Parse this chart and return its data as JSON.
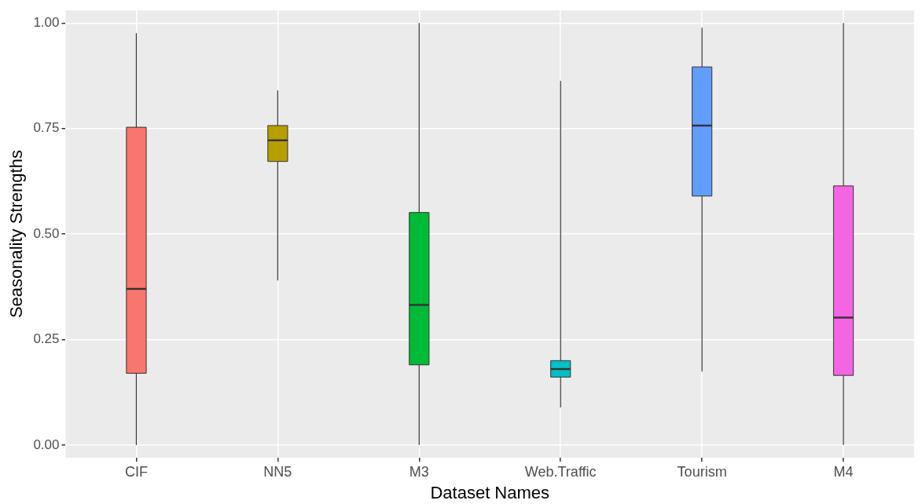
{
  "chart_data": {
    "type": "box",
    "xlabel": "Dataset Names",
    "ylabel": "Seasonality Strengths",
    "categories": [
      "CIF",
      "NN5",
      "M3",
      "Web.Traffic",
      "Tourism",
      "M4"
    ],
    "colors": [
      "#f8766d",
      "#b79f00",
      "#00ba38",
      "#00bfc4",
      "#619cff",
      "#f564e3"
    ],
    "boxes": [
      {
        "low": 0,
        "q1": 0.17,
        "median": 0.37,
        "q3": 0.753,
        "high": 0.976
      },
      {
        "low": 0.39,
        "q1": 0.672,
        "median": 0.722,
        "q3": 0.757,
        "high": 0.84
      },
      {
        "low": 0,
        "q1": 0.19,
        "median": 0.332,
        "q3": 0.551,
        "high": 1.0
      },
      {
        "low": 0.089,
        "q1": 0.161,
        "median": 0.18,
        "q3": 0.2,
        "high": 0.863
      },
      {
        "low": 0.174,
        "q1": 0.59,
        "median": 0.757,
        "q3": 0.896,
        "high": 0.989
      },
      {
        "low": 0,
        "q1": 0.165,
        "median": 0.302,
        "q3": 0.614,
        "high": 1.0
      }
    ],
    "ylim": [
      -0.03,
      1.03
    ],
    "yticks": [
      {
        "value": 0,
        "label": "0.00"
      },
      {
        "value": 0.25,
        "label": "0.25"
      },
      {
        "value": 0.5,
        "label": "0.50"
      },
      {
        "value": 0.75,
        "label": "0.75"
      },
      {
        "value": 1,
        "label": "1.00"
      }
    ],
    "grid": true
  }
}
